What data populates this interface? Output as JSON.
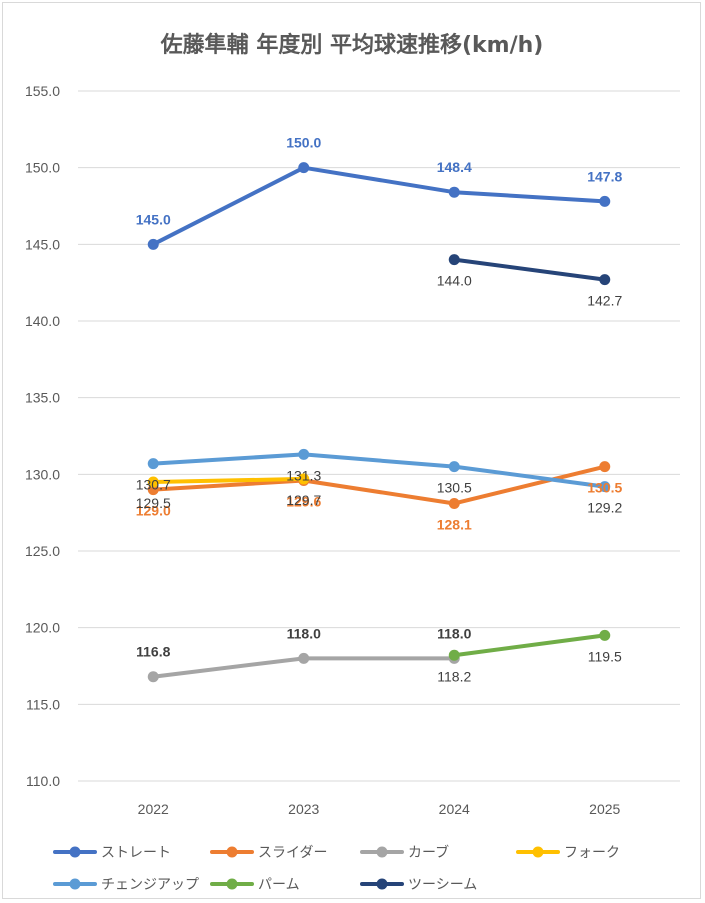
{
  "chart_data": {
    "type": "line",
    "title": "佐藤隼輔 年度別 平均球速推移(km/h)",
    "xlabel": "",
    "ylabel": "",
    "categories": [
      "2022",
      "2023",
      "2024",
      "2025"
    ],
    "ylim": [
      110,
      155
    ],
    "yticks": [
      "110.0",
      "115.0",
      "120.0",
      "125.0",
      "130.0",
      "135.0",
      "140.0",
      "145.0",
      "150.0",
      "155.0"
    ],
    "grid": true,
    "legend_position": "bottom",
    "series": [
      {
        "name": "ストレート",
        "color": "#4472C4",
        "values": [
          145.0,
          150.0,
          148.4,
          147.8
        ],
        "labels": [
          "145.0",
          "150.0",
          "148.4",
          "147.8"
        ],
        "label_pos": "above",
        "label_bold": true
      },
      {
        "name": "スライダー",
        "color": "#ED7D31",
        "values": [
          129.0,
          129.6,
          128.1,
          130.5
        ],
        "labels": [
          "129.0",
          "129.6",
          "128.1",
          "130.5"
        ],
        "label_pos": "below",
        "label_bold": true
      },
      {
        "name": "カーブ",
        "color": "#A5A5A5",
        "values": [
          116.8,
          118.0,
          118.0,
          null
        ],
        "labels": [
          "116.8",
          "118.0",
          "118.0",
          null
        ],
        "label_pos": "above",
        "label_bold": true
      },
      {
        "name": "フォーク",
        "color": "#FFC000",
        "values": [
          129.5,
          129.7,
          null,
          null
        ],
        "labels": [
          "129.5",
          "129.7",
          null,
          null
        ],
        "label_pos": "below",
        "label_bold": false
      },
      {
        "name": "チェンジアップ",
        "color": "#5B9BD5",
        "values": [
          130.7,
          131.3,
          130.5,
          129.2
        ],
        "labels": [
          "130.7",
          "131.3",
          "130.5",
          "129.2"
        ],
        "label_pos": "below",
        "label_bold": false
      },
      {
        "name": "パーム",
        "color": "#70AD47",
        "values": [
          null,
          null,
          118.2,
          119.5
        ],
        "labels": [
          null,
          null,
          "118.2",
          "119.5"
        ],
        "label_pos": "below",
        "label_bold": false
      },
      {
        "name": "ツーシーム",
        "color": "#264478",
        "values": [
          null,
          null,
          144.0,
          142.7
        ],
        "labels": [
          null,
          null,
          "144.0",
          "142.7"
        ],
        "label_pos": "below",
        "label_bold": false
      }
    ]
  }
}
